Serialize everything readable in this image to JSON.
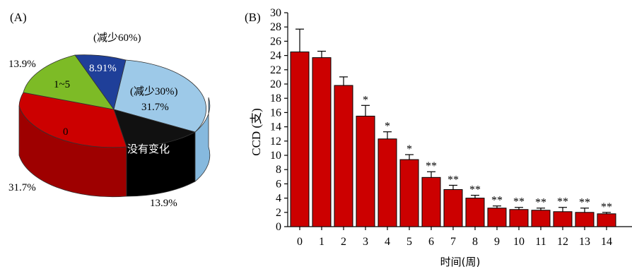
{
  "chart_data": [
    {
      "panel_label": "(A)",
      "type": "pie",
      "three_d": true,
      "slices": [
        {
          "label": "(减少60%)",
          "value_label": "8.91%",
          "value": 8.91,
          "color": "#1f3f99"
        },
        {
          "label": "(减少30%)",
          "value_label": "31.7%",
          "value": 31.7,
          "color": "#9dc9e8"
        },
        {
          "label": "没有变化",
          "value_label": "13.9%",
          "value": 13.9,
          "color": "#111111"
        },
        {
          "label": "0",
          "value_label": "31.7%",
          "value": 31.7,
          "color": "#cc0000"
        },
        {
          "label": "1~5",
          "value_label": "13.9%",
          "value": 13.9,
          "color": "#7dbb26"
        }
      ]
    },
    {
      "panel_label": "(B)",
      "type": "bar",
      "xlabel": "时间(周)",
      "ylabel": "CCD (支)",
      "ylim": [
        0,
        30
      ],
      "yticks": [
        "0",
        "2",
        "4",
        "6",
        "8",
        "10",
        "12",
        "14",
        "16",
        "18",
        "20",
        "22",
        "24",
        "26",
        "28",
        "30"
      ],
      "categories": [
        "0",
        "1",
        "2",
        "3",
        "4",
        "5",
        "6",
        "7",
        "8",
        "9",
        "10",
        "11",
        "12",
        "13",
        "14"
      ],
      "values": [
        24.5,
        23.7,
        19.8,
        15.5,
        12.3,
        9.4,
        6.9,
        5.2,
        4.0,
        2.6,
        2.4,
        2.3,
        2.1,
        2.0,
        1.8
      ],
      "errors": [
        3.2,
        0.9,
        1.2,
        1.5,
        1.0,
        0.7,
        0.8,
        0.6,
        0.4,
        0.3,
        0.3,
        0.3,
        0.6,
        0.6,
        0.2
      ],
      "significance": [
        "",
        "",
        "",
        "*",
        "*",
        "*",
        "**",
        "**",
        "**",
        "**",
        "**",
        "**",
        "**",
        "**",
        "**"
      ],
      "bar_color": "#cc0000",
      "grid": false
    }
  ]
}
